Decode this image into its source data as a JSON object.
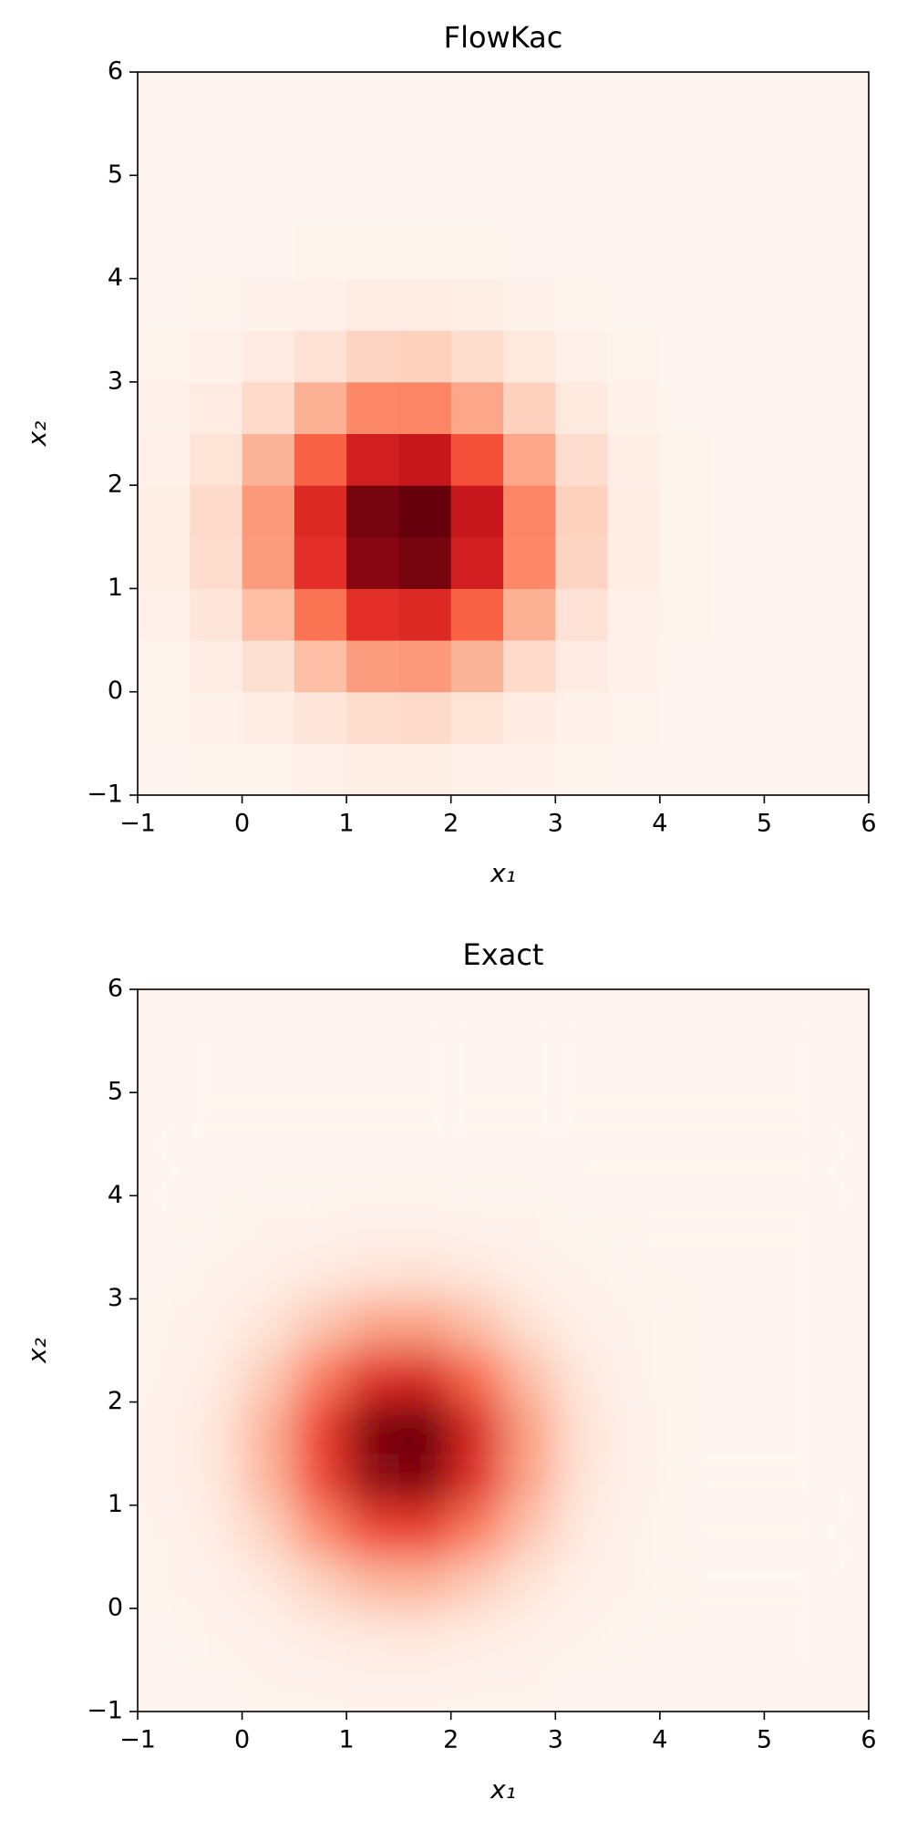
{
  "chart_data": [
    {
      "type": "heatmap",
      "title": "FlowKac",
      "xlabel": "x₁",
      "ylabel": "x₂",
      "cmap": "Reds",
      "interpolation": "nearest",
      "xlim": [
        -1,
        6
      ],
      "ylim": [
        -1,
        6
      ],
      "xticks": [
        {
          "value": -1,
          "label": "−1"
        },
        0,
        1,
        2,
        3,
        4,
        5,
        6
      ],
      "yticks": [
        {
          "value": -1,
          "label": "−1"
        },
        0,
        1,
        2,
        3,
        4,
        5,
        6
      ],
      "x": [
        -0.75,
        -0.25,
        0.25,
        0.75,
        1.25,
        1.75,
        2.25,
        2.75,
        3.25,
        3.75,
        4.25,
        4.75,
        5.25,
        5.75
      ],
      "y": [
        -0.75,
        -0.25,
        0.25,
        0.75,
        1.25,
        1.75,
        2.25,
        2.75,
        3.25,
        3.75,
        4.25,
        4.75,
        5.25,
        5.75
      ],
      "z": [
        [
          0,
          0.01,
          0.01,
          0.03,
          0.04,
          0.04,
          0.03,
          0.02,
          0.01,
          0,
          0,
          0,
          0,
          0
        ],
        [
          0.01,
          0.02,
          0.05,
          0.09,
          0.13,
          0.14,
          0.1,
          0.06,
          0.02,
          0.01,
          0,
          0,
          0,
          0
        ],
        [
          0.01,
          0.05,
          0.12,
          0.23,
          0.33,
          0.34,
          0.26,
          0.14,
          0.06,
          0.02,
          0,
          0,
          0,
          0
        ],
        [
          0.03,
          0.09,
          0.23,
          0.45,
          0.64,
          0.66,
          0.5,
          0.27,
          0.11,
          0.03,
          0.01,
          0,
          0,
          0
        ],
        [
          0.04,
          0.13,
          0.33,
          0.64,
          0.9,
          0.93,
          0.7,
          0.39,
          0.16,
          0.05,
          0.01,
          0,
          0,
          0
        ],
        [
          0.04,
          0.14,
          0.34,
          0.66,
          0.93,
          0.96,
          0.73,
          0.4,
          0.17,
          0.05,
          0.01,
          0,
          0,
          0
        ],
        [
          0.03,
          0.1,
          0.26,
          0.5,
          0.7,
          0.73,
          0.55,
          0.3,
          0.13,
          0.04,
          0.01,
          0,
          0,
          0
        ],
        [
          0.02,
          0.06,
          0.14,
          0.27,
          0.39,
          0.4,
          0.3,
          0.17,
          0.07,
          0.02,
          0,
          0,
          0,
          0
        ],
        [
          0.01,
          0.02,
          0.06,
          0.11,
          0.16,
          0.17,
          0.13,
          0.07,
          0.03,
          0.01,
          0,
          0,
          0,
          0
        ],
        [
          0,
          0.01,
          0.02,
          0.03,
          0.05,
          0.05,
          0.04,
          0.02,
          0.01,
          0,
          0,
          0,
          0,
          0
        ],
        [
          0,
          0,
          0,
          0.01,
          0.01,
          0.01,
          0.01,
          0,
          0,
          0,
          0,
          0,
          0,
          0
        ],
        [
          0,
          0,
          0,
          0,
          0,
          0,
          0,
          0,
          0,
          0,
          0,
          0,
          0,
          0
        ],
        [
          0,
          0,
          0,
          0,
          0,
          0,
          0,
          0,
          0,
          0,
          0,
          0,
          0,
          0
        ],
        [
          0,
          0,
          0,
          0,
          0,
          0,
          0,
          0,
          0,
          0,
          0,
          0,
          0,
          0
        ]
      ]
    },
    {
      "type": "heatmap",
      "title": "Exact",
      "xlabel": "x₁",
      "ylabel": "x₂",
      "cmap": "Reds",
      "interpolation": "bilinear",
      "xlim": [
        -1,
        6
      ],
      "ylim": [
        -1,
        6
      ],
      "xticks": [
        {
          "value": -1,
          "label": "−1"
        },
        0,
        1,
        2,
        3,
        4,
        5,
        6
      ],
      "yticks": [
        {
          "value": -1,
          "label": "−1"
        },
        0,
        1,
        2,
        3,
        4,
        5,
        6
      ],
      "x": [
        -0.75,
        -0.25,
        0.25,
        0.75,
        1.25,
        1.75,
        2.25,
        2.75,
        3.25,
        3.75,
        4.25,
        4.75,
        5.25,
        5.75
      ],
      "y": [
        -0.75,
        -0.25,
        0.25,
        0.75,
        1.25,
        1.75,
        2.25,
        2.75,
        3.25,
        3.75,
        4.25,
        4.75,
        5.25,
        5.75
      ],
      "z": [
        [
          0,
          0,
          0.01,
          0.01,
          0.02,
          0.02,
          0.01,
          0.01,
          0,
          0,
          0,
          0,
          0,
          0
        ],
        [
          0,
          0.01,
          0.02,
          0.05,
          0.07,
          0.08,
          0.05,
          0.03,
          0.01,
          0,
          0,
          0,
          0,
          0
        ],
        [
          0.01,
          0.02,
          0.07,
          0.16,
          0.25,
          0.26,
          0.18,
          0.09,
          0.03,
          0.01,
          0,
          0,
          0,
          0
        ],
        [
          0.01,
          0.05,
          0.16,
          0.37,
          0.57,
          0.59,
          0.41,
          0.2,
          0.06,
          0.01,
          0,
          0,
          0,
          0
        ],
        [
          0.02,
          0.07,
          0.25,
          0.57,
          0.86,
          0.9,
          0.63,
          0.3,
          0.09,
          0.02,
          0,
          0,
          0,
          0
        ],
        [
          0.02,
          0.08,
          0.26,
          0.59,
          0.9,
          0.94,
          0.66,
          0.31,
          0.1,
          0.02,
          0,
          0,
          0,
          0
        ],
        [
          0.01,
          0.05,
          0.18,
          0.41,
          0.63,
          0.66,
          0.46,
          0.22,
          0.07,
          0.01,
          0,
          0,
          0,
          0
        ],
        [
          0.01,
          0.03,
          0.09,
          0.2,
          0.3,
          0.31,
          0.22,
          0.1,
          0.03,
          0.01,
          0,
          0,
          0,
          0
        ],
        [
          0,
          0.01,
          0.03,
          0.06,
          0.09,
          0.1,
          0.07,
          0.03,
          0.01,
          0,
          0,
          0,
          0,
          0
        ],
        [
          0,
          0,
          0.01,
          0.01,
          0.02,
          0.02,
          0.01,
          0.01,
          0,
          0,
          0,
          0,
          0,
          0
        ],
        [
          0,
          0,
          0,
          0,
          0,
          0,
          0,
          0,
          0,
          0,
          0,
          0,
          0,
          0
        ],
        [
          0,
          0,
          0,
          0,
          0,
          0,
          0,
          0,
          0,
          0,
          0,
          0,
          0,
          0
        ],
        [
          0,
          0,
          0,
          0,
          0,
          0,
          0,
          0,
          0,
          0,
          0,
          0,
          0,
          0
        ],
        [
          0,
          0,
          0,
          0,
          0,
          0,
          0,
          0,
          0,
          0,
          0,
          0,
          0,
          0
        ]
      ]
    }
  ]
}
